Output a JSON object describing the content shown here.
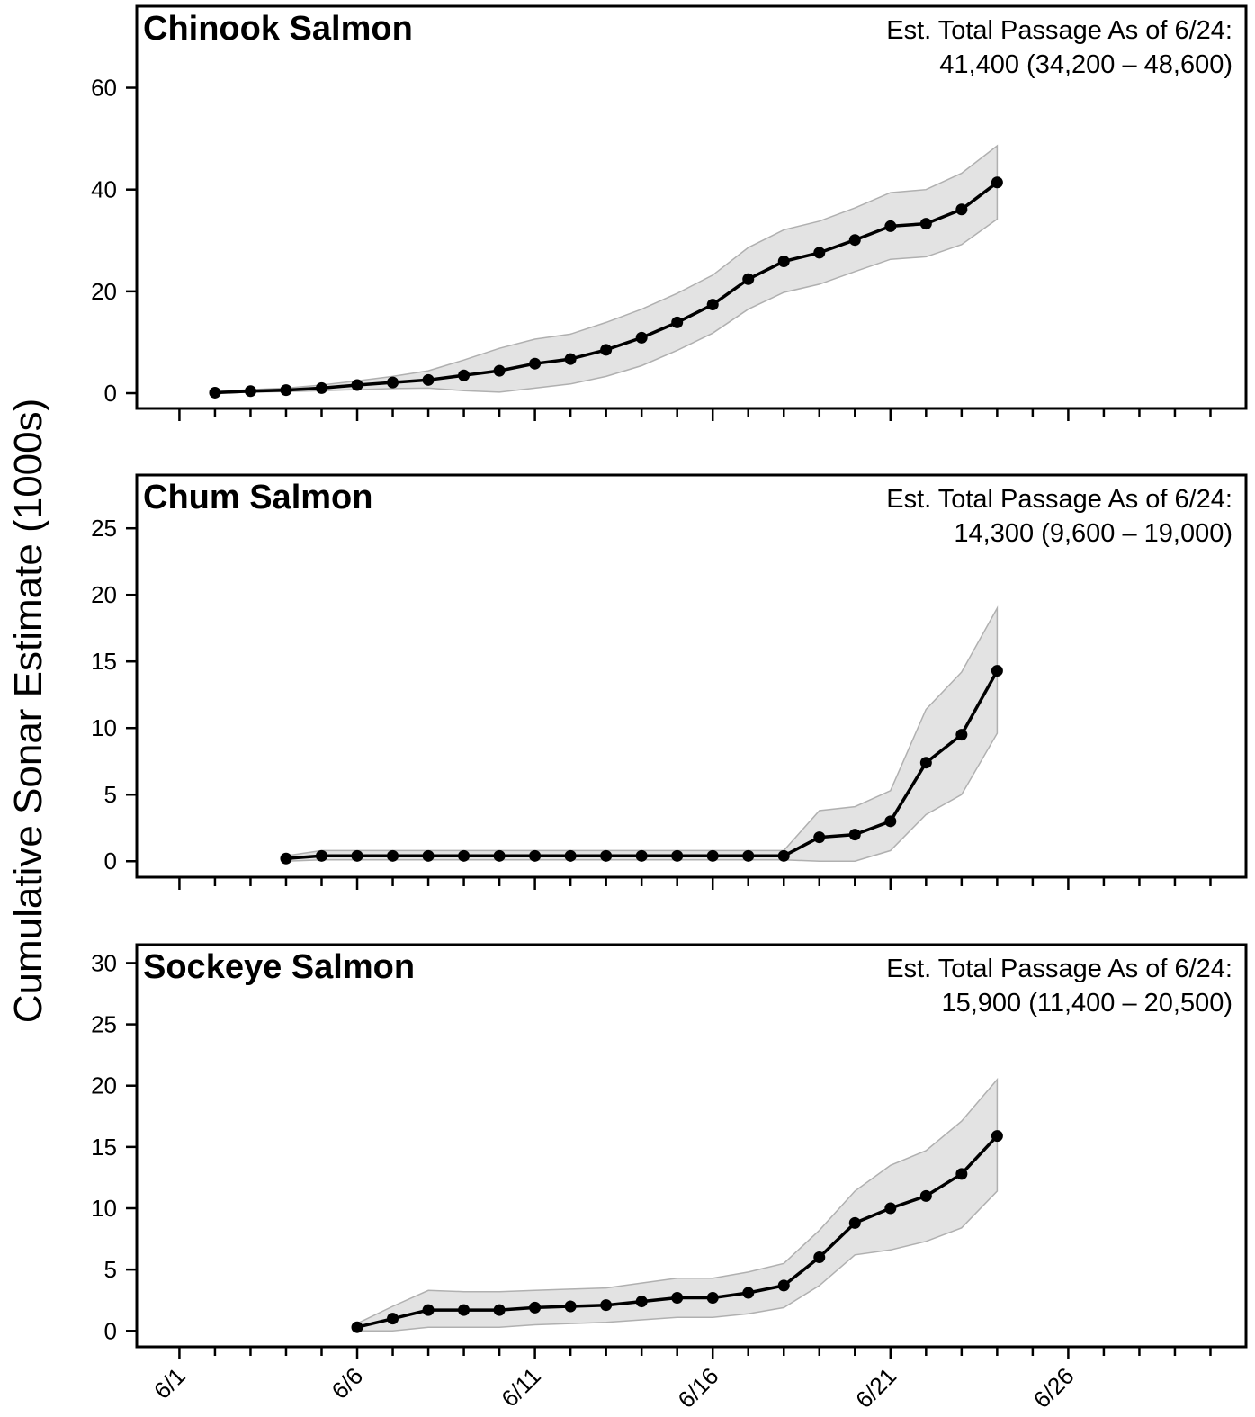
{
  "ylabel": "Cumulative Sonar Estimate (1000s)",
  "x_ticks": [
    {
      "day": 1,
      "label": "6/1"
    },
    {
      "day": 6,
      "label": "6/6"
    },
    {
      "day": 11,
      "label": "6/11"
    },
    {
      "day": 16,
      "label": "6/16"
    },
    {
      "day": 21,
      "label": "6/21"
    },
    {
      "day": 26,
      "label": "6/26"
    }
  ],
  "chart_data": [
    {
      "type": "line",
      "title": "Chinook Salmon",
      "annotation_line1": "Est. Total Passage As of 6/24:",
      "annotation_line2": "41,400 (34,200 – 48,600)",
      "x_unit": "day of June",
      "x": [
        2,
        3,
        4,
        5,
        6,
        7,
        8,
        9,
        10,
        11,
        12,
        13,
        14,
        15,
        16,
        17,
        18,
        19,
        20,
        21,
        22,
        23,
        24
      ],
      "y": [
        0.1,
        0.4,
        0.6,
        1.0,
        1.6,
        2.1,
        2.6,
        3.5,
        4.4,
        5.8,
        6.7,
        8.5,
        10.9,
        13.9,
        17.4,
        22.4,
        25.9,
        27.6,
        30.1,
        32.8,
        33.3,
        36.1,
        41.4
      ],
      "lower": [
        0.0,
        0.2,
        0.3,
        0.5,
        0.7,
        0.9,
        1.0,
        0.5,
        0.2,
        1.0,
        1.8,
        3.3,
        5.4,
        8.4,
        11.8,
        16.5,
        19.8,
        21.4,
        23.9,
        26.3,
        26.8,
        29.2,
        34.2
      ],
      "upper": [
        0.3,
        0.7,
        1.0,
        1.6,
        2.4,
        3.3,
        4.4,
        6.5,
        8.8,
        10.6,
        11.6,
        13.9,
        16.5,
        19.6,
        23.2,
        28.6,
        32.1,
        33.8,
        36.4,
        39.4,
        40.0,
        43.2,
        48.6
      ],
      "ylim": [
        -3,
        76
      ],
      "yticks": [
        0,
        20,
        40,
        60
      ],
      "xlim": [
        -0.2,
        31.0
      ]
    },
    {
      "type": "line",
      "title": "Chum Salmon",
      "annotation_line1": "Est. Total Passage As of 6/24:",
      "annotation_line2": "14,300 (9,600 – 19,000)",
      "x_unit": "day of June",
      "x": [
        4,
        5,
        6,
        7,
        8,
        9,
        10,
        11,
        12,
        13,
        14,
        15,
        16,
        17,
        18,
        19,
        20,
        21,
        22,
        23,
        24
      ],
      "y": [
        0.2,
        0.4,
        0.4,
        0.4,
        0.4,
        0.4,
        0.4,
        0.4,
        0.4,
        0.4,
        0.4,
        0.4,
        0.4,
        0.4,
        0.4,
        1.8,
        2.0,
        3.0,
        7.4,
        9.5,
        14.3
      ],
      "lower": [
        0.0,
        0.1,
        0.1,
        0.1,
        0.1,
        0.1,
        0.1,
        0.1,
        0.1,
        0.1,
        0.1,
        0.1,
        0.1,
        0.1,
        0.1,
        0.0,
        0.0,
        0.8,
        3.5,
        5.0,
        9.6
      ],
      "upper": [
        0.4,
        0.8,
        0.8,
        0.8,
        0.8,
        0.8,
        0.8,
        0.8,
        0.8,
        0.8,
        0.8,
        0.8,
        0.8,
        0.8,
        0.8,
        3.8,
        4.1,
        5.3,
        11.4,
        14.2,
        19.0
      ],
      "ylim": [
        -1.2,
        29.0
      ],
      "yticks": [
        0,
        5,
        10,
        15,
        20,
        25
      ],
      "xlim": [
        -0.2,
        31.0
      ]
    },
    {
      "type": "line",
      "title": "Sockeye Salmon",
      "annotation_line1": "Est. Total Passage As of 6/24:",
      "annotation_line2": "15,900 (11,400 – 20,500)",
      "x_unit": "day of June",
      "x": [
        6,
        7,
        8,
        9,
        10,
        11,
        12,
        13,
        14,
        15,
        16,
        17,
        18,
        19,
        20,
        21,
        22,
        23,
        24
      ],
      "y": [
        0.3,
        1.0,
        1.7,
        1.7,
        1.7,
        1.9,
        2.0,
        2.1,
        2.4,
        2.7,
        2.7,
        3.1,
        3.7,
        6.0,
        8.8,
        10.0,
        11.0,
        12.8,
        15.9
      ],
      "lower": [
        0.0,
        0.0,
        0.3,
        0.3,
        0.3,
        0.5,
        0.6,
        0.7,
        0.9,
        1.1,
        1.1,
        1.4,
        1.9,
        3.7,
        6.2,
        6.6,
        7.3,
        8.4,
        11.4
      ],
      "upper": [
        0.6,
        2.0,
        3.3,
        3.2,
        3.2,
        3.3,
        3.4,
        3.5,
        3.9,
        4.3,
        4.3,
        4.8,
        5.5,
        8.2,
        11.4,
        13.5,
        14.7,
        17.1,
        20.5
      ],
      "ylim": [
        -1.3,
        31.5
      ],
      "yticks": [
        0,
        5,
        10,
        15,
        20,
        25,
        30
      ],
      "xlim": [
        -0.2,
        31.0
      ]
    }
  ]
}
